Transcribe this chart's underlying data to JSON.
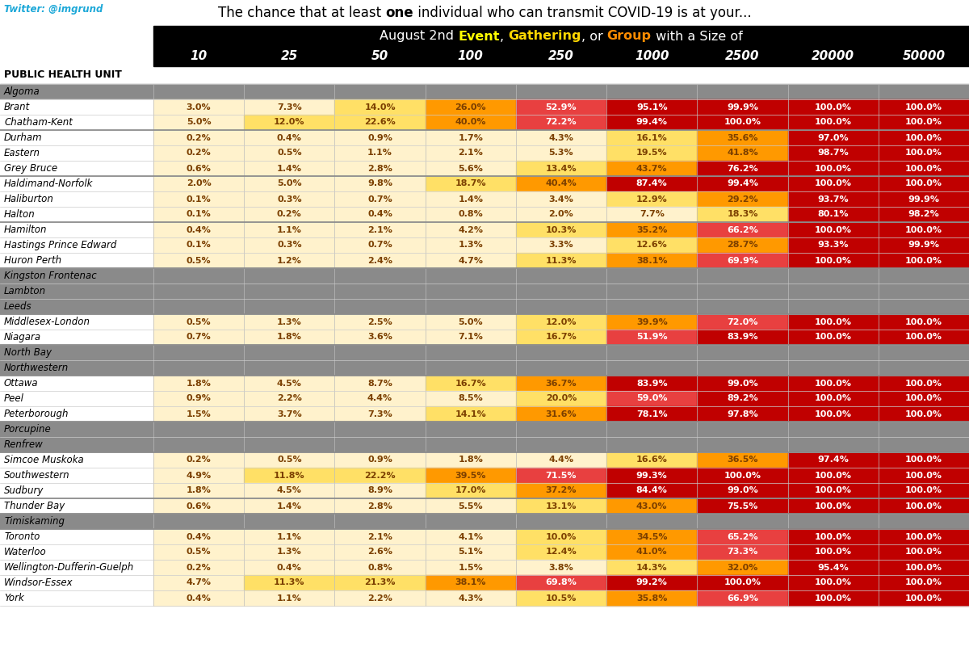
{
  "title_main_prefix": "The chance that at least ",
  "title_main_bold": "one",
  "title_main_suffix": " individual who can transmit COVID-19 is at your...",
  "twitter": "Twitter: @imgrund",
  "col_header": "PUBLIC HEALTH UNIT",
  "columns": [
    "10",
    "25",
    "50",
    "100",
    "250",
    "1000",
    "2500",
    "20000",
    "50000"
  ],
  "rows": [
    {
      "name": "Algoma",
      "values": null,
      "group": 1
    },
    {
      "name": "Brant",
      "values": [
        3.0,
        7.3,
        14.0,
        26.0,
        52.9,
        95.1,
        99.9,
        100.0,
        100.0
      ],
      "group": 1
    },
    {
      "name": "Chatham-Kent",
      "values": [
        5.0,
        12.0,
        22.6,
        40.0,
        72.2,
        99.4,
        100.0,
        100.0,
        100.0
      ],
      "group": 1
    },
    {
      "name": "Durham",
      "values": [
        0.2,
        0.4,
        0.9,
        1.7,
        4.3,
        16.1,
        35.6,
        97.0,
        100.0
      ],
      "group": 2
    },
    {
      "name": "Eastern",
      "values": [
        0.2,
        0.5,
        1.1,
        2.1,
        5.3,
        19.5,
        41.8,
        98.7,
        100.0
      ],
      "group": 2
    },
    {
      "name": "Grey Bruce",
      "values": [
        0.6,
        1.4,
        2.8,
        5.6,
        13.4,
        43.7,
        76.2,
        100.0,
        100.0
      ],
      "group": 2
    },
    {
      "name": "Haldimand-Norfolk",
      "values": [
        2.0,
        5.0,
        9.8,
        18.7,
        40.4,
        87.4,
        99.4,
        100.0,
        100.0
      ],
      "group": 3
    },
    {
      "name": "Haliburton",
      "values": [
        0.1,
        0.3,
        0.7,
        1.4,
        3.4,
        12.9,
        29.2,
        93.7,
        99.9
      ],
      "group": 3
    },
    {
      "name": "Halton",
      "values": [
        0.1,
        0.2,
        0.4,
        0.8,
        2.0,
        7.7,
        18.3,
        80.1,
        98.2
      ],
      "group": 3
    },
    {
      "name": "Hamilton",
      "values": [
        0.4,
        1.1,
        2.1,
        4.2,
        10.3,
        35.2,
        66.2,
        100.0,
        100.0
      ],
      "group": 4
    },
    {
      "name": "Hastings Prince Edward",
      "values": [
        0.1,
        0.3,
        0.7,
        1.3,
        3.3,
        12.6,
        28.7,
        93.3,
        99.9
      ],
      "group": 4
    },
    {
      "name": "Huron Perth",
      "values": [
        0.5,
        1.2,
        2.4,
        4.7,
        11.3,
        38.1,
        69.9,
        100.0,
        100.0
      ],
      "group": 4
    },
    {
      "name": "Kingston Frontenac",
      "values": null,
      "group": 5
    },
    {
      "name": "Lambton",
      "values": null,
      "group": 5
    },
    {
      "name": "Leeds",
      "values": null,
      "group": 5
    },
    {
      "name": "Middlesex-London",
      "values": [
        0.5,
        1.3,
        2.5,
        5.0,
        12.0,
        39.9,
        72.0,
        100.0,
        100.0
      ],
      "group": 6
    },
    {
      "name": "Niagara",
      "values": [
        0.7,
        1.8,
        3.6,
        7.1,
        16.7,
        51.9,
        83.9,
        100.0,
        100.0
      ],
      "group": 6
    },
    {
      "name": "North Bay",
      "values": null,
      "group": 7
    },
    {
      "name": "Northwestern",
      "values": null,
      "group": 7
    },
    {
      "name": "Ottawa",
      "values": [
        1.8,
        4.5,
        8.7,
        16.7,
        36.7,
        83.9,
        99.0,
        100.0,
        100.0
      ],
      "group": 8
    },
    {
      "name": "Peel",
      "values": [
        0.9,
        2.2,
        4.4,
        8.5,
        20.0,
        59.0,
        89.2,
        100.0,
        100.0
      ],
      "group": 8
    },
    {
      "name": "Peterborough",
      "values": [
        1.5,
        3.7,
        7.3,
        14.1,
        31.6,
        78.1,
        97.8,
        100.0,
        100.0
      ],
      "group": 8
    },
    {
      "name": "Porcupine",
      "values": null,
      "group": 9
    },
    {
      "name": "Renfrew",
      "values": null,
      "group": 9
    },
    {
      "name": "Simcoe Muskoka",
      "values": [
        0.2,
        0.5,
        0.9,
        1.8,
        4.4,
        16.6,
        36.5,
        97.4,
        100.0
      ],
      "group": 10
    },
    {
      "name": "Southwestern",
      "values": [
        4.9,
        11.8,
        22.2,
        39.5,
        71.5,
        99.3,
        100.0,
        100.0,
        100.0
      ],
      "group": 10
    },
    {
      "name": "Sudbury",
      "values": [
        1.8,
        4.5,
        8.9,
        17.0,
        37.2,
        84.4,
        99.0,
        100.0,
        100.0
      ],
      "group": 10
    },
    {
      "name": "Thunder Bay",
      "values": [
        0.6,
        1.4,
        2.8,
        5.5,
        13.1,
        43.0,
        75.5,
        100.0,
        100.0
      ],
      "group": 11
    },
    {
      "name": "Timiskaming",
      "values": null,
      "group": 12
    },
    {
      "name": "Toronto",
      "values": [
        0.4,
        1.1,
        2.1,
        4.1,
        10.0,
        34.5,
        65.2,
        100.0,
        100.0
      ],
      "group": 13
    },
    {
      "name": "Waterloo",
      "values": [
        0.5,
        1.3,
        2.6,
        5.1,
        12.4,
        41.0,
        73.3,
        100.0,
        100.0
      ],
      "group": 13
    },
    {
      "name": "Wellington-Dufferin-Guelph",
      "values": [
        0.2,
        0.4,
        0.8,
        1.5,
        3.8,
        14.3,
        32.0,
        95.4,
        100.0
      ],
      "group": 13
    },
    {
      "name": "Windsor-Essex",
      "values": [
        4.7,
        11.3,
        21.3,
        38.1,
        69.8,
        99.2,
        100.0,
        100.0,
        100.0
      ],
      "group": 13
    },
    {
      "name": "York",
      "values": [
        0.4,
        1.1,
        2.2,
        4.3,
        10.5,
        35.8,
        66.9,
        100.0,
        100.0
      ],
      "group": 13
    }
  ],
  "bg_main": "#ffffff",
  "bg_header_black": "#000000",
  "bg_gray": "#8a8a8a",
  "text_white": "#ffffff",
  "text_black": "#000000",
  "text_cyan": "#1da8d8",
  "subtitle_parts": [
    [
      "August 2nd ",
      "#ffffff",
      false
    ],
    [
      "Event",
      "#ffff00",
      true
    ],
    [
      ", ",
      "#ffffff",
      false
    ],
    [
      "Gathering",
      "#ffd700",
      true
    ],
    [
      ", or ",
      "#ffffff",
      false
    ],
    [
      "Group",
      "#ff8c00",
      true
    ],
    [
      " with a Size of",
      "#ffffff",
      false
    ]
  ]
}
